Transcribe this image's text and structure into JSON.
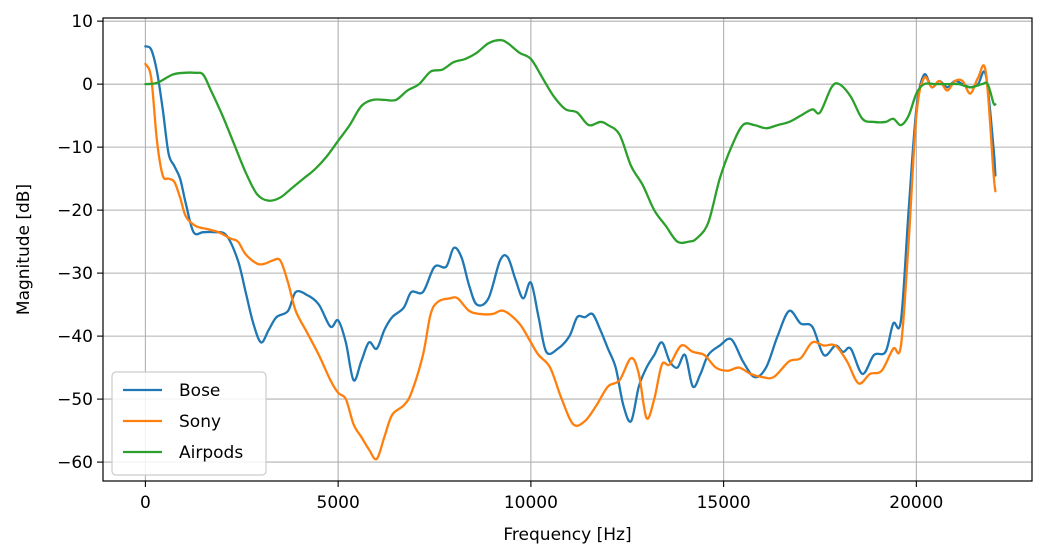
{
  "chart_data": {
    "type": "line",
    "xlabel": "Frequency [Hz]",
    "ylabel": "Magnitude [dB]",
    "xlim": [
      -1100,
      23000
    ],
    "ylim": [
      -63,
      10.5
    ],
    "xticks": [
      0,
      5000,
      10000,
      15000,
      20000
    ],
    "yticks": [
      10,
      0,
      -10,
      -20,
      -30,
      -40,
      -50,
      -60
    ],
    "xtick_labels": [
      "0",
      "5000",
      "10000",
      "15000",
      "20000"
    ],
    "ytick_labels": [
      "10",
      "0",
      "−10",
      "−20",
      "−30",
      "−40",
      "−50",
      "−60"
    ],
    "grid": true,
    "legend_position": "lower-left",
    "series": [
      {
        "name": "Bose",
        "color": "#1f77b4",
        "points": [
          [
            0,
            6
          ],
          [
            150,
            5.5
          ],
          [
            300,
            2
          ],
          [
            450,
            -4
          ],
          [
            600,
            -11
          ],
          [
            750,
            -13
          ],
          [
            900,
            -15
          ],
          [
            1050,
            -19
          ],
          [
            1250,
            -23.5
          ],
          [
            1500,
            -23.5
          ],
          [
            1800,
            -23.5
          ],
          [
            2100,
            -24
          ],
          [
            2400,
            -28
          ],
          [
            2600,
            -33
          ],
          [
            2800,
            -38
          ],
          [
            3000,
            -41
          ],
          [
            3200,
            -39
          ],
          [
            3400,
            -37
          ],
          [
            3700,
            -36
          ],
          [
            3900,
            -33
          ],
          [
            4200,
            -33.5
          ],
          [
            4500,
            -35
          ],
          [
            4800,
            -38.5
          ],
          [
            5000,
            -37.5
          ],
          [
            5200,
            -41
          ],
          [
            5400,
            -47
          ],
          [
            5600,
            -44
          ],
          [
            5800,
            -41
          ],
          [
            6000,
            -42
          ],
          [
            6200,
            -39
          ],
          [
            6400,
            -37
          ],
          [
            6700,
            -35.5
          ],
          [
            6900,
            -33
          ],
          [
            7200,
            -33
          ],
          [
            7500,
            -29
          ],
          [
            7800,
            -29
          ],
          [
            8000,
            -26
          ],
          [
            8200,
            -27.5
          ],
          [
            8400,
            -32
          ],
          [
            8600,
            -35
          ],
          [
            8900,
            -34
          ],
          [
            9200,
            -28
          ],
          [
            9400,
            -27.5
          ],
          [
            9600,
            -31
          ],
          [
            9800,
            -34
          ],
          [
            10000,
            -31.5
          ],
          [
            10200,
            -37
          ],
          [
            10400,
            -42.5
          ],
          [
            10700,
            -42
          ],
          [
            11000,
            -40
          ],
          [
            11200,
            -37
          ],
          [
            11400,
            -37
          ],
          [
            11600,
            -36.5
          ],
          [
            11800,
            -39
          ],
          [
            12000,
            -42
          ],
          [
            12200,
            -45
          ],
          [
            12400,
            -51
          ],
          [
            12600,
            -53.5
          ],
          [
            12800,
            -48
          ],
          [
            13000,
            -45
          ],
          [
            13200,
            -43
          ],
          [
            13400,
            -41
          ],
          [
            13600,
            -44
          ],
          [
            13800,
            -45
          ],
          [
            14000,
            -43
          ],
          [
            14200,
            -48
          ],
          [
            14400,
            -46
          ],
          [
            14600,
            -43
          ],
          [
            14900,
            -41.5
          ],
          [
            15200,
            -40.5
          ],
          [
            15500,
            -44
          ],
          [
            15800,
            -46.5
          ],
          [
            16100,
            -45
          ],
          [
            16400,
            -40
          ],
          [
            16700,
            -36
          ],
          [
            17000,
            -38
          ],
          [
            17300,
            -38.5
          ],
          [
            17600,
            -43
          ],
          [
            17900,
            -41.5
          ],
          [
            18100,
            -42.5
          ],
          [
            18300,
            -42
          ],
          [
            18600,
            -46
          ],
          [
            18900,
            -43
          ],
          [
            19200,
            -42.5
          ],
          [
            19400,
            -38
          ],
          [
            19600,
            -37.5
          ],
          [
            19800,
            -20
          ],
          [
            20000,
            -4
          ],
          [
            20200,
            1.5
          ],
          [
            20400,
            -0.5
          ],
          [
            20600,
            0.5
          ],
          [
            20800,
            -0.5
          ],
          [
            21000,
            0.5
          ],
          [
            21200,
            0
          ],
          [
            21400,
            -0.5
          ],
          [
            21600,
            0
          ],
          [
            21800,
            1.5
          ],
          [
            22000,
            -10
          ],
          [
            22050,
            -14.5
          ]
        ]
      },
      {
        "name": "Sony",
        "color": "#ff7f0e",
        "points": [
          [
            0,
            3.2
          ],
          [
            150,
            1
          ],
          [
            300,
            -9
          ],
          [
            450,
            -14.5
          ],
          [
            600,
            -15
          ],
          [
            750,
            -15.5
          ],
          [
            900,
            -18
          ],
          [
            1050,
            -21
          ],
          [
            1300,
            -22.5
          ],
          [
            1600,
            -23
          ],
          [
            1900,
            -23.5
          ],
          [
            2200,
            -24.5
          ],
          [
            2400,
            -25
          ],
          [
            2600,
            -27
          ],
          [
            2900,
            -28.5
          ],
          [
            3100,
            -28.5
          ],
          [
            3300,
            -28
          ],
          [
            3500,
            -28
          ],
          [
            3700,
            -31.5
          ],
          [
            3900,
            -36
          ],
          [
            4200,
            -39.5
          ],
          [
            4500,
            -43
          ],
          [
            4800,
            -47
          ],
          [
            5000,
            -49
          ],
          [
            5200,
            -50
          ],
          [
            5400,
            -54
          ],
          [
            5600,
            -56
          ],
          [
            5800,
            -58
          ],
          [
            6000,
            -59.5
          ],
          [
            6200,
            -56
          ],
          [
            6400,
            -52.5
          ],
          [
            6700,
            -51
          ],
          [
            6900,
            -49
          ],
          [
            7200,
            -43
          ],
          [
            7400,
            -36.5
          ],
          [
            7600,
            -34.5
          ],
          [
            7900,
            -34
          ],
          [
            8100,
            -34
          ],
          [
            8400,
            -36
          ],
          [
            8700,
            -36.5
          ],
          [
            9000,
            -36.5
          ],
          [
            9300,
            -36
          ],
          [
            9700,
            -38
          ],
          [
            10000,
            -41
          ],
          [
            10200,
            -43
          ],
          [
            10500,
            -45
          ],
          [
            10800,
            -50
          ],
          [
            11100,
            -54
          ],
          [
            11400,
            -53.5
          ],
          [
            11700,
            -51
          ],
          [
            12000,
            -48
          ],
          [
            12300,
            -47
          ],
          [
            12600,
            -43.5
          ],
          [
            12800,
            -46
          ],
          [
            13000,
            -53
          ],
          [
            13200,
            -50
          ],
          [
            13400,
            -44.5
          ],
          [
            13600,
            -44.5
          ],
          [
            13900,
            -41.5
          ],
          [
            14200,
            -42.5
          ],
          [
            14500,
            -43
          ],
          [
            14800,
            -45
          ],
          [
            15100,
            -45.5
          ],
          [
            15400,
            -45
          ],
          [
            15700,
            -46
          ],
          [
            16000,
            -46.5
          ],
          [
            16300,
            -46.5
          ],
          [
            16700,
            -44
          ],
          [
            17000,
            -43.5
          ],
          [
            17300,
            -41
          ],
          [
            17600,
            -41.5
          ],
          [
            17900,
            -41.5
          ],
          [
            18200,
            -44
          ],
          [
            18500,
            -47.5
          ],
          [
            18800,
            -46
          ],
          [
            19100,
            -45.5
          ],
          [
            19400,
            -42
          ],
          [
            19600,
            -41.5
          ],
          [
            19800,
            -25
          ],
          [
            20000,
            -5
          ],
          [
            20200,
            1
          ],
          [
            20400,
            -0.5
          ],
          [
            20600,
            0.5
          ],
          [
            20800,
            -1
          ],
          [
            21000,
            0.5
          ],
          [
            21200,
            0.5
          ],
          [
            21400,
            -1.5
          ],
          [
            21600,
            1
          ],
          [
            21800,
            2
          ],
          [
            22000,
            -14
          ],
          [
            22050,
            -17
          ]
        ]
      },
      {
        "name": "Airpods",
        "color": "#2ca02c",
        "points": [
          [
            0,
            0
          ],
          [
            300,
            0.2
          ],
          [
            700,
            1.5
          ],
          [
            1000,
            1.8
          ],
          [
            1300,
            1.8
          ],
          [
            1500,
            1.5
          ],
          [
            1700,
            -1
          ],
          [
            2000,
            -5
          ],
          [
            2300,
            -9.5
          ],
          [
            2600,
            -14
          ],
          [
            2900,
            -17.5
          ],
          [
            3200,
            -18.5
          ],
          [
            3500,
            -18
          ],
          [
            3800,
            -16.5
          ],
          [
            4100,
            -15
          ],
          [
            4400,
            -13.5
          ],
          [
            4700,
            -11.5
          ],
          [
            5000,
            -9
          ],
          [
            5300,
            -6.5
          ],
          [
            5600,
            -3.5
          ],
          [
            5900,
            -2.5
          ],
          [
            6200,
            -2.5
          ],
          [
            6500,
            -2.5
          ],
          [
            6800,
            -1
          ],
          [
            7100,
            0
          ],
          [
            7400,
            2
          ],
          [
            7700,
            2.3
          ],
          [
            8000,
            3.5
          ],
          [
            8300,
            4
          ],
          [
            8600,
            5
          ],
          [
            8900,
            6.5
          ],
          [
            9200,
            7
          ],
          [
            9400,
            6.5
          ],
          [
            9700,
            5
          ],
          [
            10000,
            4
          ],
          [
            10300,
            1
          ],
          [
            10600,
            -2
          ],
          [
            10900,
            -4
          ],
          [
            11200,
            -4.5
          ],
          [
            11500,
            -6.5
          ],
          [
            11800,
            -6
          ],
          [
            12000,
            -6.5
          ],
          [
            12300,
            -8
          ],
          [
            12600,
            -13
          ],
          [
            12900,
            -16
          ],
          [
            13200,
            -20
          ],
          [
            13500,
            -22.5
          ],
          [
            13800,
            -25
          ],
          [
            14100,
            -25
          ],
          [
            14300,
            -24.5
          ],
          [
            14600,
            -22
          ],
          [
            14900,
            -15
          ],
          [
            15200,
            -10
          ],
          [
            15500,
            -6.5
          ],
          [
            15800,
            -6.5
          ],
          [
            16100,
            -7
          ],
          [
            16400,
            -6.5
          ],
          [
            16700,
            -6
          ],
          [
            17000,
            -5
          ],
          [
            17300,
            -4
          ],
          [
            17500,
            -4.5
          ],
          [
            17800,
            -0.5
          ],
          [
            18000,
            0
          ],
          [
            18300,
            -2
          ],
          [
            18600,
            -5.5
          ],
          [
            18900,
            -6
          ],
          [
            19200,
            -6
          ],
          [
            19400,
            -5.5
          ],
          [
            19600,
            -6.5
          ],
          [
            19800,
            -5
          ],
          [
            20000,
            -1.5
          ],
          [
            20200,
            0
          ],
          [
            20500,
            0
          ],
          [
            20800,
            0
          ],
          [
            21100,
            0
          ],
          [
            21400,
            -0.5
          ],
          [
            21700,
            0
          ],
          [
            21850,
            0
          ],
          [
            22000,
            -3
          ],
          [
            22050,
            -3.2
          ]
        ]
      }
    ]
  }
}
